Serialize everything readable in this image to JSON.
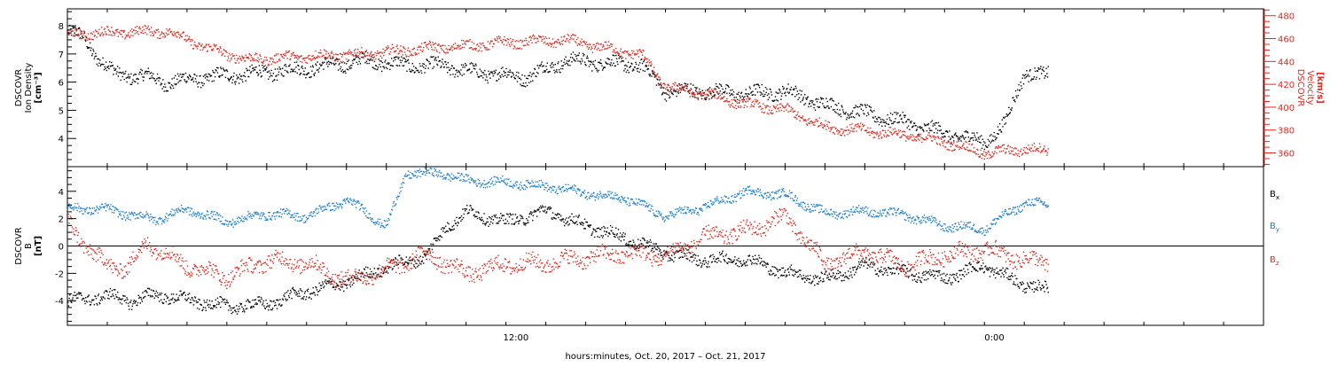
{
  "chart_data": [
    {
      "type": "scatter",
      "panel": "top",
      "left_axis": {
        "label_lines": [
          "DSCOVR",
          "Ion Density",
          "[cm⁻³]"
        ],
        "ylim": [
          3.0,
          8.6
        ],
        "ticks": [
          4,
          5,
          6,
          7,
          8
        ],
        "color": "#000000"
      },
      "right_axis": {
        "label_lines": [
          "DSCOVR",
          "Velocity",
          "[km/s]"
        ],
        "ylim": [
          348,
          486
        ],
        "ticks": [
          360,
          380,
          400,
          420,
          440,
          460,
          480
        ],
        "color": "#e8261c"
      },
      "series": [
        {
          "axis": "left",
          "color": "#000000",
          "keyframes": [
            [
              0,
              7.8
            ],
            [
              0.4,
              7.6
            ],
            [
              0.8,
              6.8
            ],
            [
              1.2,
              6.3
            ],
            [
              2.0,
              6.2
            ],
            [
              2.5,
              6.0
            ],
            [
              3.5,
              6.2
            ],
            [
              4.5,
              6.3
            ],
            [
              6.0,
              6.5
            ],
            [
              7.5,
              6.8
            ],
            [
              8.5,
              6.6
            ],
            [
              9.5,
              6.6
            ],
            [
              10.0,
              6.4
            ],
            [
              10.8,
              6.3
            ],
            [
              11.5,
              6.2
            ],
            [
              12.5,
              6.8
            ],
            [
              13.5,
              6.7
            ],
            [
              14.4,
              6.6
            ],
            [
              15.0,
              5.7
            ],
            [
              16.0,
              5.7
            ],
            [
              17.0,
              5.6
            ],
            [
              18.0,
              5.7
            ],
            [
              19.0,
              5.2
            ],
            [
              20.0,
              4.9
            ],
            [
              21.0,
              4.6
            ],
            [
              22.0,
              4.2
            ],
            [
              23.0,
              3.9
            ],
            [
              23.5,
              4.5
            ],
            [
              24.0,
              6.4
            ],
            [
              24.5,
              6.2
            ],
            [
              25.0,
              6.6
            ]
          ],
          "spread": 0.22
        },
        {
          "axis": "right",
          "color": "#e8261c",
          "keyframes": [
            [
              0,
              463
            ],
            [
              0.5,
              465
            ],
            [
              1.5,
              466
            ],
            [
              2.5,
              467
            ],
            [
              3.5,
              452
            ],
            [
              4.5,
              442
            ],
            [
              6.0,
              445
            ],
            [
              7.5,
              447
            ],
            [
              9.0,
              452
            ],
            [
              10.0,
              454
            ],
            [
              11.0,
              457
            ],
            [
              12.5,
              459
            ],
            [
              13.5,
              452
            ],
            [
              14.4,
              446
            ],
            [
              15.0,
              418
            ],
            [
              16.0,
              412
            ],
            [
              17.0,
              403
            ],
            [
              18.0,
              398
            ],
            [
              19.0,
              383
            ],
            [
              20.0,
              380
            ],
            [
              21.0,
              376
            ],
            [
              22.0,
              370
            ],
            [
              23.0,
              360
            ],
            [
              24.0,
              364
            ],
            [
              25.0,
              361
            ]
          ],
          "spread": 4
        }
      ]
    },
    {
      "type": "scatter",
      "panel": "bottom",
      "left_axis": {
        "label_lines": [
          "DSCOVR",
          "B",
          "[nT]"
        ],
        "ylim": [
          -5.8,
          5.8
        ],
        "ticks": [
          -4,
          -2,
          0,
          2,
          4
        ],
        "color": "#000000"
      },
      "zero_line": true,
      "legend": {
        "placement": "right",
        "entries": [
          {
            "label": "B",
            "sub": "x",
            "color": "#000000"
          },
          {
            "label": "B",
            "sub": "y",
            "color": "#1a7fd4"
          },
          {
            "label": "B",
            "sub": "z",
            "color": "#e8261c"
          }
        ]
      },
      "series": [
        {
          "name": "Bx",
          "color": "#000000",
          "keyframes": [
            [
              0,
              -4.0
            ],
            [
              1.0,
              -3.6
            ],
            [
              1.6,
              -4.0
            ],
            [
              2.2,
              -3.5
            ],
            [
              3.0,
              -3.9
            ],
            [
              4.0,
              -4.4
            ],
            [
              5.0,
              -4.2
            ],
            [
              6.0,
              -3.3
            ],
            [
              7.0,
              -2.6
            ],
            [
              8.0,
              -1.5
            ],
            [
              9.0,
              -0.7
            ],
            [
              9.5,
              1.5
            ],
            [
              10.0,
              2.5
            ],
            [
              11.0,
              1.8
            ],
            [
              12.0,
              2.6
            ],
            [
              13.0,
              1.5
            ],
            [
              14.0,
              0.6
            ],
            [
              15.0,
              -0.5
            ],
            [
              16.0,
              -1.0
            ],
            [
              17.0,
              -0.9
            ],
            [
              18.0,
              -1.9
            ],
            [
              19.0,
              -2.4
            ],
            [
              20.0,
              -1.4
            ],
            [
              21.0,
              -1.9
            ],
            [
              22.0,
              -2.3
            ],
            [
              23.0,
              -1.4
            ],
            [
              23.8,
              -2.6
            ],
            [
              25.0,
              -3.5
            ]
          ],
          "spread": 0.4
        },
        {
          "name": "By",
          "color": "#1a7fd4",
          "keyframes": [
            [
              0,
              2.8
            ],
            [
              1.0,
              2.7
            ],
            [
              1.6,
              2.3
            ],
            [
              2.2,
              2.0
            ],
            [
              3.0,
              2.7
            ],
            [
              4.0,
              1.8
            ],
            [
              5.0,
              2.4
            ],
            [
              6.0,
              2.2
            ],
            [
              7.0,
              3.4
            ],
            [
              8.0,
              1.5
            ],
            [
              8.5,
              5.4
            ],
            [
              9.5,
              5.3
            ],
            [
              10.0,
              4.8
            ],
            [
              11.0,
              4.7
            ],
            [
              12.0,
              4.4
            ],
            [
              13.0,
              3.9
            ],
            [
              14.0,
              3.5
            ],
            [
              15.0,
              2.2
            ],
            [
              16.0,
              2.9
            ],
            [
              17.0,
              4.0
            ],
            [
              18.0,
              3.8
            ],
            [
              19.0,
              2.4
            ],
            [
              20.0,
              2.6
            ],
            [
              21.0,
              2.3
            ],
            [
              22.0,
              1.5
            ],
            [
              23.0,
              1.3
            ],
            [
              24.0,
              3.2
            ],
            [
              25.0,
              2.9
            ]
          ],
          "spread": 0.3
        },
        {
          "name": "Bz",
          "color": "#e8261c",
          "keyframes": [
            [
              0,
              1.8
            ],
            [
              0.7,
              -0.8
            ],
            [
              1.0,
              -1.3
            ],
            [
              1.5,
              -1.6
            ],
            [
              2.0,
              0.3
            ],
            [
              3.0,
              -1.4
            ],
            [
              4.0,
              -2.2
            ],
            [
              5.0,
              -1.0
            ],
            [
              6.0,
              -1.2
            ],
            [
              7.0,
              -2.5
            ],
            [
              8.0,
              -1.7
            ],
            [
              9.0,
              -0.5
            ],
            [
              10.0,
              -2.0
            ],
            [
              11.0,
              -1.3
            ],
            [
              12.0,
              -1.2
            ],
            [
              13.0,
              -0.8
            ],
            [
              14.0,
              -0.5
            ],
            [
              15.0,
              -0.7
            ],
            [
              16.0,
              0.7
            ],
            [
              17.0,
              1.1
            ],
            [
              18.0,
              2.2
            ],
            [
              19.0,
              -1.3
            ],
            [
              20.0,
              -0.4
            ],
            [
              21.0,
              -1.4
            ],
            [
              22.0,
              -0.6
            ],
            [
              23.0,
              -0.2
            ],
            [
              24.0,
              -1.0
            ],
            [
              25.0,
              -1.3
            ]
          ],
          "spread": 0.55
        }
      ]
    }
  ],
  "x_axis": {
    "label": "hours:minutes, Oct. 20, 2017 – Oct. 21, 2017",
    "tick_labels": [
      "12:00",
      "0:00"
    ],
    "tick_positions_hours": [
      11.25,
      23.25
    ],
    "range_hours": [
      0,
      30
    ],
    "data_end_hours": 24.6
  }
}
